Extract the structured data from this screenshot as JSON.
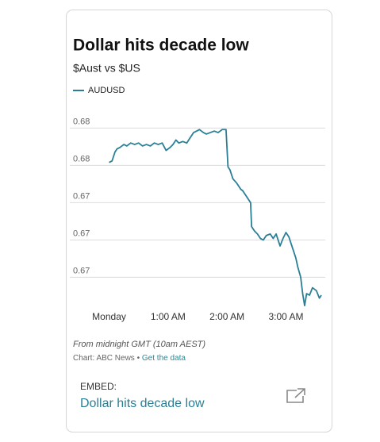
{
  "chart_data": {
    "type": "line",
    "title": "Dollar hits decade low",
    "subtitle": "$Aust vs $US",
    "note": "From midnight GMT (10am AEST)",
    "legend": "top-left",
    "grid": true,
    "xlim": [
      -40,
      220
    ],
    "xticks": [
      {
        "value": 0,
        "label": "Monday"
      },
      {
        "value": 60,
        "label": "1:00 AM"
      },
      {
        "value": 120,
        "label": "2:00 AM"
      },
      {
        "value": 180,
        "label": "3:00 AM"
      }
    ],
    "ylim": [
      0.668,
      0.6805
    ],
    "yticks": [
      {
        "value": 0.68,
        "label": "0.68"
      },
      {
        "value": 0.6775,
        "label": "0.68"
      },
      {
        "value": 0.675,
        "label": "0.67"
      },
      {
        "value": 0.6725,
        "label": "0.67"
      },
      {
        "value": 0.67,
        "label": "0.67"
      }
    ],
    "x": [
      0,
      3,
      6,
      8,
      11,
      15,
      18,
      22,
      26,
      30,
      34,
      38,
      42,
      46,
      50,
      54,
      58,
      62,
      65,
      68,
      71,
      75,
      79,
      83,
      86,
      89,
      92,
      96,
      99,
      103,
      107,
      111,
      115,
      119,
      121,
      123,
      126,
      130,
      134,
      136,
      140,
      144,
      145,
      148,
      151,
      154,
      157,
      160,
      164,
      167,
      170,
      174,
      177,
      180,
      183,
      186,
      190,
      192,
      195,
      197,
      199,
      201,
      204,
      207,
      211,
      214,
      216
    ],
    "series": [
      {
        "name": "AUDUSD",
        "color": "#2a7f96",
        "values": [
          0.6777,
          0.6778,
          0.6784,
          0.6786,
          0.6787,
          0.6789,
          0.6788,
          0.679,
          0.6789,
          0.679,
          0.6788,
          0.6789,
          0.6788,
          0.679,
          0.6789,
          0.679,
          0.6785,
          0.6787,
          0.6789,
          0.6792,
          0.679,
          0.6791,
          0.679,
          0.6794,
          0.6797,
          0.6798,
          0.6799,
          0.6797,
          0.6796,
          0.6797,
          0.6798,
          0.6797,
          0.6799,
          0.6799,
          0.6774,
          0.6772,
          0.6766,
          0.6763,
          0.6759,
          0.6758,
          0.6754,
          0.675,
          0.6734,
          0.6731,
          0.6729,
          0.6726,
          0.6725,
          0.6728,
          0.6729,
          0.6726,
          0.6729,
          0.6721,
          0.6726,
          0.673,
          0.6727,
          0.6721,
          0.6713,
          0.6707,
          0.67,
          0.6689,
          0.6681,
          0.6689,
          0.6688,
          0.6693,
          0.6691,
          0.6686,
          0.6688
        ]
      }
    ]
  },
  "footer": {
    "source": "Chart: ABC News",
    "separator": "•",
    "source_link": "Get the data",
    "embed_label": "EMBED:",
    "embed_title": "Dollar hits decade low"
  }
}
